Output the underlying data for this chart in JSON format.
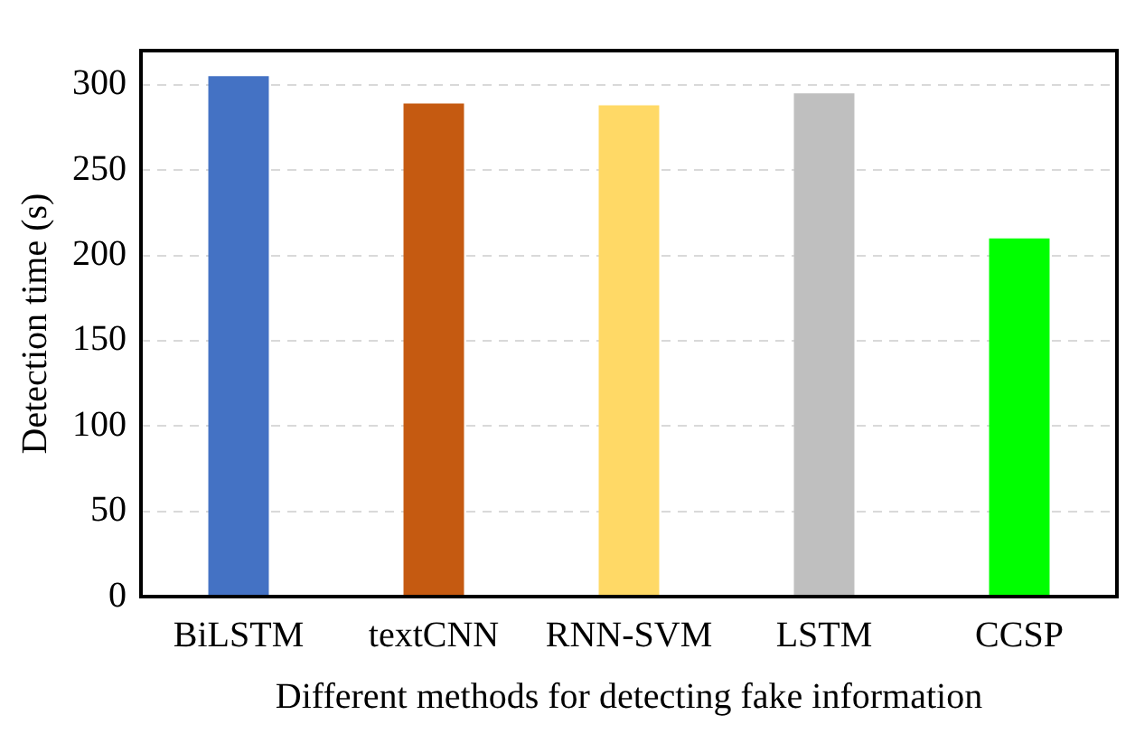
{
  "chart_data": {
    "type": "bar",
    "xlabel": "Different methods for detecting fake information",
    "ylabel": "Detection time (s)",
    "categories": [
      "BiLSTM",
      "textCNN",
      "RNN-SVM",
      "LSTM",
      "CCSP"
    ],
    "values": [
      305,
      289,
      288,
      295,
      210
    ],
    "colors": [
      "#4472c4",
      "#c55a11",
      "#ffd966",
      "#bfbfbf",
      "#00ff00"
    ],
    "ylim": [
      0,
      320
    ],
    "yticks": [
      0,
      50,
      100,
      150,
      200,
      250,
      300
    ],
    "grid": "y",
    "legend": false
  }
}
